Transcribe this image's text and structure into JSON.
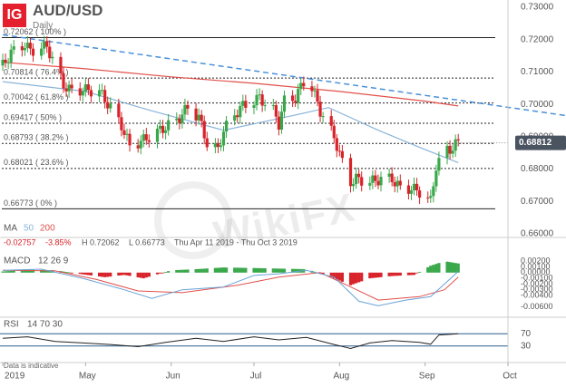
{
  "header": {
    "logo_text": "IG",
    "symbol": "AUD/USD",
    "timeframe": "Daily"
  },
  "watermark": "WikiFX",
  "colors": {
    "up": "#39a84a",
    "down": "#d8232a",
    "ma50": "#8ab4d8",
    "ma200": "#e0504a",
    "trend": "#4a90d9",
    "macd_line": "#6aa3d8",
    "signal_line": "#e0504a",
    "last_price_bg": "#4a5360"
  },
  "chart_data": {
    "type": "candlestick",
    "price_axis": {
      "min": 0.66,
      "max": 0.73,
      "ticks": [
        0.73,
        0.72,
        0.71,
        0.7,
        0.69,
        0.68,
        0.67,
        0.66
      ],
      "tick_labels": [
        "0.73000",
        "0.72000",
        "0.71000",
        "0.70000",
        "0.69000",
        "0.68000",
        "0.67000",
        "0.66000"
      ]
    },
    "last_price": {
      "value": 0.68812,
      "label": "0.68812"
    },
    "fibonacci": [
      {
        "label": "0.72062 ( 100% )",
        "value": 0.72062,
        "style": "solid"
      },
      {
        "label": "0.70814 ( 76.4% )",
        "value": 0.70814,
        "style": "dotted"
      },
      {
        "label": "0.70042 ( 61.8% )",
        "value": 0.70042,
        "style": "dotted"
      },
      {
        "label": "0.69417 ( 50% )",
        "value": 0.69417,
        "style": "dotted"
      },
      {
        "label": "0.68793 ( 38.2% )",
        "value": 0.68793,
        "style": "dotted"
      },
      {
        "label": "0.68021 ( 23.6% )",
        "value": 0.68021,
        "style": "dotted"
      },
      {
        "label": "0.66773 ( 0% )",
        "value": 0.66773,
        "style": "solid"
      }
    ],
    "trendline": {
      "start": {
        "date": "2019-04-01",
        "price": 0.7215
      },
      "end": {
        "date": "2019-10-01",
        "price": 0.6991
      }
    },
    "x_axis": {
      "start": "2019-03-31",
      "end": "2019-10-01",
      "labels": [
        {
          "date": "2019-04-01",
          "label": "2019"
        },
        {
          "date": "2019-05-01",
          "label": "May"
        },
        {
          "date": "2019-06-01",
          "label": "Jun"
        },
        {
          "date": "2019-07-01",
          "label": "Jul"
        },
        {
          "date": "2019-08-01",
          "label": "Aug"
        },
        {
          "date": "2019-09-01",
          "label": "Sep"
        },
        {
          "date": "2019-10-01",
          "label": "Oct"
        }
      ]
    },
    "close_path": [
      [
        "2019-04-01",
        0.712
      ],
      [
        "2019-04-04",
        0.716
      ],
      [
        "2019-04-09",
        0.7185
      ],
      [
        "2019-04-11",
        0.7165
      ],
      [
        "2019-04-17",
        0.718
      ],
      [
        "2019-04-23",
        0.706
      ],
      [
        "2019-04-26",
        0.704
      ],
      [
        "2019-04-30",
        0.7045
      ],
      [
        "2019-05-06",
        0.704
      ],
      [
        "2019-05-10",
        0.699
      ],
      [
        "2019-05-14",
        0.6935
      ],
      [
        "2019-05-17",
        0.687
      ],
      [
        "2019-05-22",
        0.689
      ],
      [
        "2019-05-28",
        0.692
      ],
      [
        "2019-06-03",
        0.695
      ],
      [
        "2019-06-07",
        0.699
      ],
      [
        "2019-06-11",
        0.696
      ],
      [
        "2019-06-14",
        0.688
      ],
      [
        "2019-06-18",
        0.686
      ],
      [
        "2019-06-20",
        0.692
      ],
      [
        "2019-06-26",
        0.699
      ],
      [
        "2019-07-03",
        0.702
      ],
      [
        "2019-07-08",
        0.698
      ],
      [
        "2019-07-10",
        0.694
      ],
      [
        "2019-07-12",
        0.701
      ],
      [
        "2019-07-16",
        0.702
      ],
      [
        "2019-07-19",
        0.707
      ],
      [
        "2019-07-22",
        0.705
      ],
      [
        "2019-07-25",
        0.698
      ],
      [
        "2019-07-30",
        0.69
      ],
      [
        "2019-08-02",
        0.682
      ],
      [
        "2019-08-05",
        0.676
      ],
      [
        "2019-08-07",
        0.677
      ],
      [
        "2019-08-12",
        0.676
      ],
      [
        "2019-08-16",
        0.677
      ],
      [
        "2019-08-20",
        0.677
      ],
      [
        "2019-08-23",
        0.674
      ],
      [
        "2019-08-27",
        0.674
      ],
      [
        "2019-08-30",
        0.673
      ],
      [
        "2019-09-03",
        0.67
      ],
      [
        "2019-09-05",
        0.681
      ],
      [
        "2019-09-09",
        0.686
      ],
      [
        "2019-09-11",
        0.6865
      ],
      [
        "2019-09-13",
        0.6885
      ]
    ],
    "ma50": [
      [
        "2019-04-01",
        0.707
      ],
      [
        "2019-05-01",
        0.704
      ],
      [
        "2019-05-25",
        0.698
      ],
      [
        "2019-06-20",
        0.692
      ],
      [
        "2019-07-15",
        0.6965
      ],
      [
        "2019-07-28",
        0.699
      ],
      [
        "2019-08-15",
        0.692
      ],
      [
        "2019-09-01",
        0.686
      ],
      [
        "2019-09-13",
        0.682
      ]
    ],
    "ma200": [
      [
        "2019-04-01",
        0.713
      ],
      [
        "2019-05-01",
        0.711
      ],
      [
        "2019-06-01",
        0.7085
      ],
      [
        "2019-07-01",
        0.7065
      ],
      [
        "2019-08-01",
        0.704
      ],
      [
        "2019-09-01",
        0.701
      ],
      [
        "2019-09-13",
        0.6995
      ]
    ],
    "ma_legend": {
      "title": "MA",
      "p1": "50",
      "p2": "200",
      "change": "-0.02757",
      "change_pct": "-3.85%",
      "high": "H 0.72062",
      "low": "L 0.66773",
      "range": "Thu Apr 11 2019 - Thu Oct 3 2019"
    },
    "macd": {
      "title": "MACD",
      "params": "12  26  9",
      "axis": {
        "min": -0.007,
        "max": 0.0025,
        "ticks": [
          0.002,
          0.001,
          0.0,
          -0.001,
          -0.002,
          -0.003,
          -0.004,
          -0.006
        ],
        "tick_labels": [
          "0.00200",
          "0.00100",
          "0.00000",
          "-0.00100",
          "-0.00200",
          "-0.00300",
          "-0.00400",
          "-0.00600"
        ]
      },
      "macd_line": [
        [
          "2019-04-01",
          0.0004
        ],
        [
          "2019-04-15",
          0.0006
        ],
        [
          "2019-04-30",
          -0.001
        ],
        [
          "2019-05-15",
          -0.003
        ],
        [
          "2019-05-25",
          -0.0045
        ],
        [
          "2019-06-05",
          -0.003
        ],
        [
          "2019-06-20",
          -0.0025
        ],
        [
          "2019-07-01",
          -0.0005
        ],
        [
          "2019-07-10",
          -0.0002
        ],
        [
          "2019-07-20",
          0.0004
        ],
        [
          "2019-07-30",
          -0.0008
        ],
        [
          "2019-08-08",
          -0.005
        ],
        [
          "2019-08-15",
          -0.0058
        ],
        [
          "2019-08-25",
          -0.0048
        ],
        [
          "2019-09-03",
          -0.0042
        ],
        [
          "2019-09-13",
          0.0002
        ]
      ],
      "signal_line": [
        [
          "2019-04-01",
          0.0004
        ],
        [
          "2019-04-20",
          0.0003
        ],
        [
          "2019-05-05",
          -0.0012
        ],
        [
          "2019-05-20",
          -0.0032
        ],
        [
          "2019-06-05",
          -0.0035
        ],
        [
          "2019-06-25",
          -0.0022
        ],
        [
          "2019-07-10",
          -0.0008
        ],
        [
          "2019-07-25",
          0.0
        ],
        [
          "2019-08-05",
          -0.0025
        ],
        [
          "2019-08-15",
          -0.0048
        ],
        [
          "2019-08-30",
          -0.0042
        ],
        [
          "2019-09-08",
          -0.003
        ],
        [
          "2019-09-13",
          -0.0008
        ]
      ],
      "histogram": [
        [
          "2019-04-01",
          0.0002
        ],
        [
          "2019-04-10",
          0.0005
        ],
        [
          "2019-04-20",
          0.0004
        ],
        [
          "2019-04-30",
          -0.0003
        ],
        [
          "2019-05-08",
          -0.0008
        ],
        [
          "2019-05-15",
          -0.0004
        ],
        [
          "2019-05-22",
          -0.001
        ],
        [
          "2019-06-01",
          0.0004
        ],
        [
          "2019-06-10",
          0.0006
        ],
        [
          "2019-06-20",
          0.0009
        ],
        [
          "2019-07-01",
          0.0008
        ],
        [
          "2019-07-10",
          0.0007
        ],
        [
          "2019-07-20",
          0.0006
        ],
        [
          "2019-07-28",
          -0.0006
        ],
        [
          "2019-08-05",
          -0.0022
        ],
        [
          "2019-08-12",
          -0.001
        ],
        [
          "2019-08-20",
          -0.0006
        ],
        [
          "2019-08-28",
          -0.0004
        ],
        [
          "2019-09-03",
          0.0012
        ],
        [
          "2019-09-08",
          0.002
        ],
        [
          "2019-09-13",
          0.0016
        ]
      ]
    },
    "rsi": {
      "title": "RSI",
      "params": "14  70  30",
      "levels": [
        70,
        30
      ],
      "level_labels": [
        "70",
        "30"
      ],
      "values": [
        [
          "2019-04-01",
          55
        ],
        [
          "2019-04-10",
          60
        ],
        [
          "2019-04-20",
          45
        ],
        [
          "2019-04-30",
          40
        ],
        [
          "2019-05-10",
          35
        ],
        [
          "2019-05-20",
          28
        ],
        [
          "2019-05-30",
          42
        ],
        [
          "2019-06-10",
          55
        ],
        [
          "2019-06-20",
          45
        ],
        [
          "2019-07-01",
          60
        ],
        [
          "2019-07-10",
          50
        ],
        [
          "2019-07-20",
          58
        ],
        [
          "2019-07-30",
          35
        ],
        [
          "2019-08-05",
          22
        ],
        [
          "2019-08-12",
          40
        ],
        [
          "2019-08-20",
          48
        ],
        [
          "2019-08-30",
          42
        ],
        [
          "2019-09-03",
          36
        ],
        [
          "2019-09-06",
          66
        ],
        [
          "2019-09-10",
          68
        ],
        [
          "2019-09-13",
          70
        ]
      ]
    },
    "disclaimer": "Data is indicative"
  }
}
